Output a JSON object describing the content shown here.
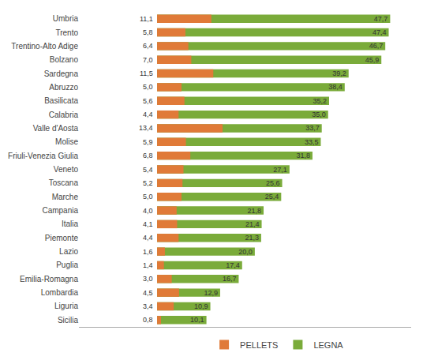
{
  "chart_data": {
    "type": "bar",
    "orientation": "horizontal",
    "stacked": false,
    "categories": [
      "Umbria",
      "Trento",
      "Trentino-Alto Adige",
      "Bolzano",
      "Sardegna",
      "Abruzzo",
      "Basilicata",
      "Calabria",
      "Valle d'Aosta",
      "Molise",
      "Friuli-Venezia Giulia",
      "Veneto",
      "Toscana",
      "Marche",
      "Campania",
      "Italia",
      "Piemonte",
      "Lazio",
      "Puglia",
      "Emilia-Romagna",
      "Lombardia",
      "Liguria",
      "Sicilia"
    ],
    "series": [
      {
        "name": "PELLETS",
        "color": "#E07A38",
        "values": [
          11.1,
          5.8,
          6.4,
          7.0,
          11.5,
          5.0,
          5.6,
          4.4,
          13.4,
          5.9,
          6.8,
          5.4,
          5.2,
          5.0,
          4.0,
          4.1,
          4.4,
          1.6,
          1.4,
          3.0,
          4.5,
          3.4,
          0.8
        ],
        "value_labels": [
          "11,1",
          "5,8",
          "6,4",
          "7,0",
          "11,5",
          "5,0",
          "5,6",
          "4,4",
          "13,4",
          "5,9",
          "6,8",
          "5,4",
          "5,2",
          "5,0",
          "4,0",
          "4,1",
          "4,4",
          "1,6",
          "1,4",
          "3,0",
          "4,5",
          "3,4",
          "0,8"
        ]
      },
      {
        "name": "LEGNA",
        "color": "#7AAB3A",
        "values": [
          47.7,
          47.4,
          46.7,
          45.9,
          39.2,
          38.4,
          35.2,
          35.0,
          33.7,
          33.5,
          31.8,
          27.1,
          25.6,
          25.4,
          21.8,
          21.4,
          21.3,
          20.0,
          17.4,
          16.7,
          12.9,
          10.9,
          10.1
        ],
        "value_labels": [
          "47,7",
          "47,4",
          "46,7",
          "45,9",
          "39,2",
          "38,4",
          "35,2",
          "35,0",
          "33,7",
          "33,5",
          "31,8",
          "27,1",
          "25,6",
          "25,4",
          "21,8",
          "21,4",
          "21,3",
          "20,0",
          "17,4",
          "16,7",
          "12,9",
          "10,9",
          "10,1"
        ]
      }
    ],
    "xlim": [
      -16,
      52
    ],
    "data_labels": true,
    "tick_labels": "y",
    "grid": false,
    "legend": "bottom"
  }
}
